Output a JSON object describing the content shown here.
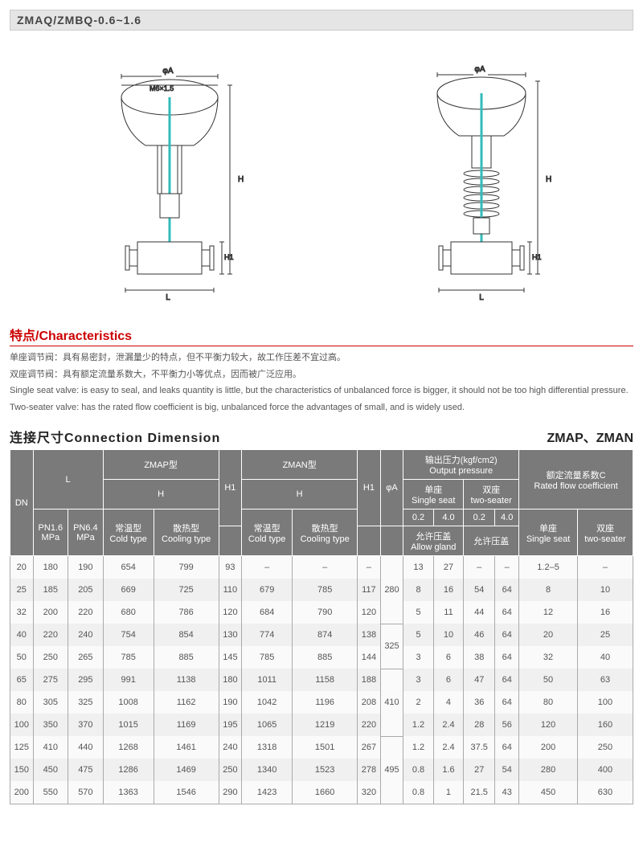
{
  "modelBar": "ZMAQ/ZMBQ-0.6~1.6",
  "diagramLabels": {
    "phiA": "φA",
    "M6": "M6×1.5",
    "H": "H",
    "H1": "H1",
    "L": "L"
  },
  "characteristics": {
    "title": "特点/Characteristics",
    "lines": [
      "单座调节阀：具有易密封，泄漏量少的特点，但不平衡力较大，故工作压差不宜过高。",
      "双座调节阀：具有额定流量系数大，不平衡力小等优点，因而被广泛应用。",
      "Single seat valve: is easy to seal, and leaks quantity is little, but the characteristics of unbalanced force is bigger, it should not be too high differential pressure.",
      "Two-seater valve: has the rated flow coefficient is big, unbalanced force the advantages of small, and is widely used."
    ]
  },
  "connection": {
    "title": "连接尺寸Connection Dimension",
    "rightLabel": "ZMAP、ZMAN",
    "header": {
      "DN": "DN",
      "L": "L",
      "ZMAP": "ZMAP型",
      "ZMAN": "ZMAN型",
      "H1": "H1",
      "phiA": "φA",
      "outPress": "输出压力(kgf/cm2)\nOutput pressure",
      "ratedFlow": "额定流量系数C\nRated flow coefficient",
      "singleSeat": "单座\nSingle seat",
      "twoSeater": "双座\ntwo-seater",
      "p02": "0.2",
      "p40": "4.0",
      "PN16": "PN1.6\nMPa",
      "PN64": "PN6.4\nMPa",
      "H": "H",
      "coldType": "常温型\nCold type",
      "coolType": "散热型\nCooling type",
      "allowGland": "允许压盖\nAllow gland",
      "allowGland2": "允许压盖",
      "single": "单座\nSingle seat",
      "two": "双座\ntwo-seater"
    },
    "phiA_groups": [
      {
        "value": "280",
        "span": 3
      },
      {
        "value": "325",
        "span": 2
      },
      {
        "value": "410",
        "span": 3
      },
      {
        "value": "495",
        "span": 3
      }
    ],
    "rows": [
      {
        "dn": "20",
        "pn16": "180",
        "pn64": "190",
        "zmapCold": "654",
        "zmapCool": "799",
        "h1a": "93",
        "zmanCold": "–",
        "zmanCool": "–",
        "h1b": "–",
        "s02": "13",
        "s40": "27",
        "t02": "–",
        "t40": "–",
        "cfS": "1.2–5",
        "cfT": "–"
      },
      {
        "dn": "25",
        "pn16": "185",
        "pn64": "205",
        "zmapCold": "669",
        "zmapCool": "725",
        "h1a": "110",
        "zmanCold": "679",
        "zmanCool": "785",
        "h1b": "117",
        "s02": "8",
        "s40": "16",
        "t02": "54",
        "t40": "64",
        "cfS": "8",
        "cfT": "10"
      },
      {
        "dn": "32",
        "pn16": "200",
        "pn64": "220",
        "zmapCold": "680",
        "zmapCool": "786",
        "h1a": "120",
        "zmanCold": "684",
        "zmanCool": "790",
        "h1b": "120",
        "s02": "5",
        "s40": "11",
        "t02": "44",
        "t40": "64",
        "cfS": "12",
        "cfT": "16"
      },
      {
        "dn": "40",
        "pn16": "220",
        "pn64": "240",
        "zmapCold": "754",
        "zmapCool": "854",
        "h1a": "130",
        "zmanCold": "774",
        "zmanCool": "874",
        "h1b": "138",
        "s02": "5",
        "s40": "10",
        "t02": "46",
        "t40": "64",
        "cfS": "20",
        "cfT": "25"
      },
      {
        "dn": "50",
        "pn16": "250",
        "pn64": "265",
        "zmapCold": "785",
        "zmapCool": "885",
        "h1a": "145",
        "zmanCold": "785",
        "zmanCool": "885",
        "h1b": "144",
        "s02": "3",
        "s40": "6",
        "t02": "38",
        "t40": "64",
        "cfS": "32",
        "cfT": "40"
      },
      {
        "dn": "65",
        "pn16": "275",
        "pn64": "295",
        "zmapCold": "991",
        "zmapCool": "1138",
        "h1a": "180",
        "zmanCold": "1011",
        "zmanCool": "1158",
        "h1b": "188",
        "s02": "3",
        "s40": "6",
        "t02": "47",
        "t40": "64",
        "cfS": "50",
        "cfT": "63"
      },
      {
        "dn": "80",
        "pn16": "305",
        "pn64": "325",
        "zmapCold": "1008",
        "zmapCool": "1162",
        "h1a": "190",
        "zmanCold": "1042",
        "zmanCool": "1196",
        "h1b": "208",
        "s02": "2",
        "s40": "4",
        "t02": "36",
        "t40": "64",
        "cfS": "80",
        "cfT": "100"
      },
      {
        "dn": "100",
        "pn16": "350",
        "pn64": "370",
        "zmapCold": "1015",
        "zmapCool": "1169",
        "h1a": "195",
        "zmanCold": "1065",
        "zmanCool": "1219",
        "h1b": "220",
        "s02": "1.2",
        "s40": "2.4",
        "t02": "28",
        "t40": "56",
        "cfS": "120",
        "cfT": "160"
      },
      {
        "dn": "125",
        "pn16": "410",
        "pn64": "440",
        "zmapCold": "1268",
        "zmapCool": "1461",
        "h1a": "240",
        "zmanCold": "1318",
        "zmanCool": "1501",
        "h1b": "267",
        "s02": "1.2",
        "s40": "2.4",
        "t02": "37.5",
        "t40": "64",
        "cfS": "200",
        "cfT": "250"
      },
      {
        "dn": "150",
        "pn16": "450",
        "pn64": "475",
        "zmapCold": "1286",
        "zmapCool": "1469",
        "h1a": "250",
        "zmanCold": "1340",
        "zmanCool": "1523",
        "h1b": "278",
        "s02": "0.8",
        "s40": "1.6",
        "t02": "27",
        "t40": "54",
        "cfS": "280",
        "cfT": "400"
      },
      {
        "dn": "200",
        "pn16": "550",
        "pn64": "570",
        "zmapCold": "1363",
        "zmapCool": "1546",
        "h1a": "290",
        "zmanCold": "1423",
        "zmanCool": "1660",
        "h1b": "320",
        "s02": "0.8",
        "s40": "1",
        "t02": "21.5",
        "t40": "43",
        "cfS": "450",
        "cfT": "630"
      }
    ]
  }
}
